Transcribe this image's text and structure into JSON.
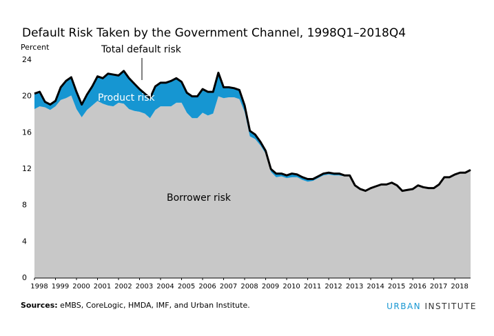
{
  "chart_data": {
    "type": "stacked_area",
    "title": "Default Risk Taken by the Government Channel, 1998Q1–2018Q4",
    "y_label": "Percent",
    "x": [
      1998,
      1998.25,
      1998.5,
      1998.75,
      1999,
      1999.25,
      1999.5,
      1999.75,
      2000,
      2000.25,
      2000.5,
      2000.75,
      2001,
      2001.25,
      2001.5,
      2001.75,
      2002,
      2002.25,
      2002.5,
      2002.75,
      2003,
      2003.25,
      2003.5,
      2003.75,
      2004,
      2004.25,
      2004.5,
      2004.75,
      2005,
      2005.25,
      2005.5,
      2005.75,
      2006,
      2006.25,
      2006.5,
      2006.75,
      2007,
      2007.25,
      2007.5,
      2007.75,
      2008,
      2008.25,
      2008.5,
      2008.75,
      2009,
      2009.25,
      2009.5,
      2009.75,
      2010,
      2010.25,
      2010.5,
      2010.75,
      2011,
      2011.25,
      2011.5,
      2011.75,
      2012,
      2012.25,
      2012.5,
      2012.75,
      2013,
      2013.25,
      2013.5,
      2013.75,
      2014,
      2014.25,
      2014.5,
      2014.75,
      2015,
      2015.25,
      2015.5,
      2015.75,
      2016,
      2016.25,
      2016.5,
      2016.75,
      2017,
      2017.25,
      2017.5,
      2017.75,
      2018,
      2018.25,
      2018.5,
      2018.75
    ],
    "series": [
      {
        "name": "Borrower risk",
        "color": "#c8c8c8",
        "stack": true,
        "values": [
          18.6,
          18.9,
          18.8,
          18.5,
          18.9,
          19.6,
          19.8,
          20.1,
          18.6,
          17.7,
          18.5,
          19.0,
          19.5,
          19.2,
          19.0,
          18.9,
          19.3,
          19.2,
          18.6,
          18.4,
          18.3,
          18.1,
          17.6,
          18.5,
          18.9,
          18.9,
          18.9,
          19.3,
          19.3,
          18.2,
          17.6,
          17.6,
          18.2,
          17.9,
          18.1,
          20.0,
          19.8,
          19.9,
          19.9,
          19.7,
          18.3,
          15.6,
          15.3,
          14.6,
          13.7,
          11.7,
          11.1,
          11.2,
          11.0,
          11.1,
          11.1,
          10.8,
          10.6,
          10.7,
          11.0,
          11.3,
          11.4,
          11.3,
          11.3,
          11.2,
          11.2,
          10.2,
          9.8,
          9.6,
          9.9,
          10.1,
          10.3,
          10.3,
          10.5,
          10.2,
          9.6,
          9.7,
          9.8,
          10.2,
          10.0,
          9.9,
          9.9,
          10.3,
          11.1,
          11.1,
          11.4,
          11.6,
          11.6,
          11.9
        ]
      },
      {
        "name": "Product risk",
        "color": "#1696d2",
        "stack": true,
        "values": [
          1.7,
          1.6,
          0.6,
          0.6,
          0.6,
          1.4,
          1.9,
          2.0,
          1.9,
          1.4,
          1.7,
          2.1,
          2.7,
          2.8,
          3.5,
          3.5,
          3.0,
          3.6,
          3.4,
          3.0,
          2.5,
          2.2,
          2.2,
          2.6,
          2.6,
          2.6,
          2.8,
          2.7,
          2.3,
          2.2,
          2.4,
          2.4,
          2.6,
          2.6,
          2.4,
          2.6,
          1.2,
          1.1,
          1.0,
          1.0,
          0.7,
          0.6,
          0.5,
          0.4,
          0.3,
          0.3,
          0.4,
          0.3,
          0.3,
          0.4,
          0.3,
          0.3,
          0.3,
          0.2,
          0.2,
          0.2,
          0.2,
          0.2,
          0.2,
          0.1,
          0.1,
          0,
          0,
          0,
          0,
          0,
          0,
          0,
          0,
          0,
          0,
          0,
          0,
          0,
          0,
          0,
          0,
          0,
          0,
          0,
          0,
          0,
          0,
          0
        ]
      },
      {
        "name": "Total default risk",
        "color": "#000000",
        "stack": false,
        "values": [
          20.3,
          20.5,
          19.4,
          19.1,
          19.5,
          21.0,
          21.7,
          22.1,
          20.5,
          19.1,
          20.2,
          21.1,
          22.2,
          22.0,
          22.5,
          22.4,
          22.3,
          22.8,
          22.0,
          21.4,
          20.8,
          20.3,
          19.8,
          21.1,
          21.5,
          21.5,
          21.7,
          22.0,
          21.6,
          20.4,
          20.0,
          20.0,
          20.8,
          20.5,
          20.5,
          22.6,
          21.0,
          21.0,
          20.9,
          20.7,
          19.0,
          16.2,
          15.8,
          15.0,
          14.0,
          12.0,
          11.5,
          11.5,
          11.3,
          11.5,
          11.4,
          11.1,
          10.9,
          10.9,
          11.2,
          11.5,
          11.6,
          11.5,
          11.5,
          11.3,
          11.3,
          10.2,
          9.8,
          9.6,
          9.9,
          10.1,
          10.3,
          10.3,
          10.5,
          10.2,
          9.6,
          9.7,
          9.8,
          10.2,
          10.0,
          9.9,
          9.9,
          10.3,
          11.1,
          11.1,
          11.4,
          11.6,
          11.6,
          11.9
        ]
      }
    ],
    "xlim": [
      1998,
      2018.75
    ],
    "xticks": [
      1998,
      1999,
      2000,
      2001,
      2002,
      2003,
      2004,
      2005,
      2006,
      2007,
      2008,
      2009,
      2010,
      2011,
      2012,
      2013,
      2014,
      2015,
      2016,
      2017,
      2018
    ],
    "ylim": [
      0,
      24
    ],
    "yticks": [
      0,
      4,
      8,
      12,
      16,
      20,
      24
    ],
    "grid": false,
    "source": {
      "label": "Sources:",
      "text": "eMBS, CoreLogic, HMDA, IMF, and Urban Institute."
    },
    "brand": {
      "first": "URBAN",
      "second": "INSTITUTE"
    }
  }
}
